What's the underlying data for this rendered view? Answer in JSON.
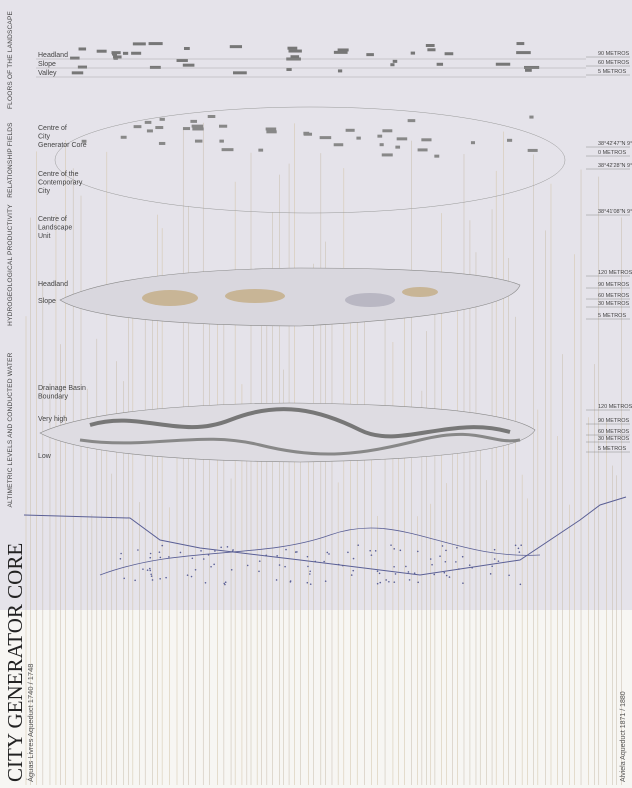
{
  "side_labels": [
    "FLOORS OF THE LANDSCAPE",
    "RELATIONSHIP FIELDS",
    "HYDROGEOLOGICAL PRODUCTIVITY",
    "ALTIMETRIC LEVELS AND CONDUCTED WATER"
  ],
  "floors": {
    "labels": [
      "Headland",
      "Slope",
      "Valley"
    ],
    "levels": [
      "90 METROS",
      "60 METROS",
      "5 METROS"
    ]
  },
  "relationship": {
    "labels": [
      [
        "Centre of",
        "City",
        "Generator Core"
      ],
      [
        "Centre of the",
        "Contemporary",
        "City"
      ],
      [
        "Centre of",
        "Landscape",
        "Unit"
      ]
    ],
    "levels": [
      "38°42'47\"N 9°08'30\"O",
      "0 METROS",
      "38°42'28\"N 9°06'50\"O",
      "38°41'08\"N 9°07'41\"O"
    ]
  },
  "hydro": {
    "labels": [
      "Headland",
      "Slope"
    ],
    "levels": [
      "120 METROS",
      "90 METROS",
      "60 METROS",
      "30 METROS",
      "5 METROS"
    ]
  },
  "altimetric": {
    "labels": [
      [
        "Drainage Basin",
        "Boundary"
      ],
      [
        "Very high"
      ],
      [
        "Low"
      ]
    ],
    "levels": [
      "120 METROS",
      "90 METROS",
      "60 METROS",
      "30 METROS",
      "5 METROS"
    ]
  },
  "title": "CITY GENERATOR CORE",
  "subtitle": "Águas Livres Aqueduct 1740 / 1748",
  "right_caption": "Alviela Aqueduct 1871 / 1880"
}
